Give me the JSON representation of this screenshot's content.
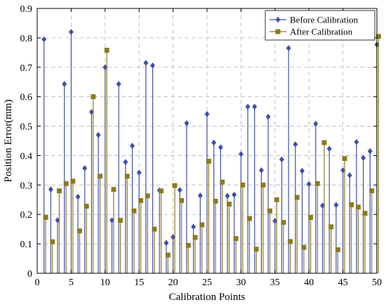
{
  "chart_data": {
    "type": "stem",
    "xlabel": "Calibration Points",
    "ylabel": "Position Error(mm)",
    "xlim": [
      0,
      50
    ],
    "ylim": [
      0,
      0.9
    ],
    "xticks": [
      "0",
      "5",
      "10",
      "15",
      "20",
      "25",
      "30",
      "35",
      "40",
      "45",
      "50"
    ],
    "yticks": [
      "0",
      "0.1",
      "0.2",
      "0.3",
      "0.4",
      "0.5",
      "0.6",
      "0.7",
      "0.8",
      "0.9"
    ],
    "grid": true,
    "legend_position": "top-right",
    "series": [
      {
        "name": "Before Calibration",
        "color": "#3f4fa8",
        "marker": "diamond",
        "x_offset": 0.0,
        "values": [
          0.795,
          0.285,
          0.18,
          0.643,
          0.82,
          0.26,
          0.357,
          0.548,
          0.47,
          0.7,
          0.18,
          0.643,
          0.378,
          0.433,
          0.342,
          0.715,
          0.706,
          0.282,
          0.103,
          0.123,
          0.283,
          0.51,
          0.158,
          0.264,
          0.541,
          0.444,
          0.428,
          0.263,
          0.267,
          0.405,
          0.566,
          0.566,
          0.35,
          0.532,
          0.178,
          0.387,
          0.765,
          0.438,
          0.348,
          0.303,
          0.508,
          0.23,
          0.423,
          0.232,
          0.35,
          0.333,
          0.446,
          0.392,
          0.415,
          0.777
        ]
      },
      {
        "name": "After Calibration",
        "color": "#8b7a1e",
        "marker": "square",
        "x_offset": 0.25,
        "values": [
          0.19,
          0.107,
          0.28,
          0.305,
          0.313,
          0.144,
          0.228,
          0.6,
          0.33,
          0.758,
          0.285,
          0.18,
          0.33,
          0.212,
          0.247,
          0.263,
          0.15,
          0.28,
          0.062,
          0.298,
          0.247,
          0.095,
          0.122,
          0.165,
          0.381,
          0.245,
          0.31,
          0.235,
          0.118,
          0.3,
          0.186,
          0.082,
          0.3,
          0.212,
          0.25,
          0.173,
          0.108,
          0.258,
          0.088,
          0.19,
          0.305,
          0.444,
          0.158,
          0.08,
          0.39,
          0.233,
          0.225,
          0.204,
          0.28,
          0.805
        ]
      }
    ]
  }
}
